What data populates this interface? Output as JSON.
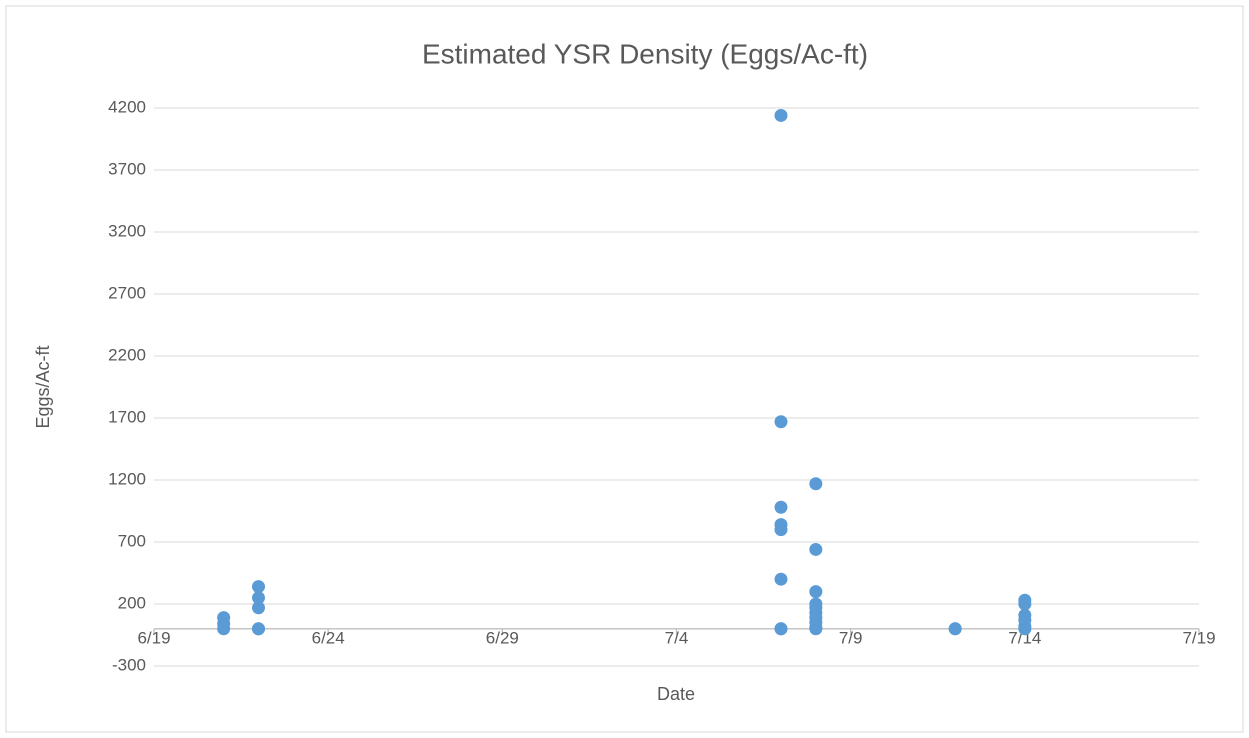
{
  "chart_data": {
    "type": "scatter",
    "title": "Estimated YSR Density (Eggs/Ac-ft)",
    "x_label": "Date",
    "y_label": "Eggs/Ac-ft",
    "color": "#5b9bd5",
    "x": [
      "6/21",
      "6/21",
      "6/21",
      "6/22",
      "6/22",
      "6/22",
      "6/22",
      "6/22",
      "7/7",
      "7/7",
      "7/7",
      "7/7",
      "7/7",
      "7/7",
      "7/7",
      "7/7",
      "7/8",
      "7/8",
      "7/8",
      "7/8",
      "7/8",
      "7/8",
      "7/8",
      "7/8",
      "7/8",
      "7/8",
      "7/12",
      "7/12",
      "7/14",
      "7/14",
      "7/14",
      "7/14",
      "7/14",
      "7/14"
    ],
    "values": [
      90,
      40,
      0,
      340,
      250,
      170,
      0,
      0,
      4140,
      1670,
      980,
      840,
      800,
      400,
      0,
      0,
      1170,
      640,
      300,
      200,
      170,
      130,
      90,
      50,
      10,
      0,
      0,
      0,
      230,
      200,
      110,
      70,
      20,
      0
    ],
    "xlim": [
      "6/19",
      "7/19"
    ],
    "xticks": [
      "6/19",
      "6/24",
      "6/29",
      "7/4",
      "7/9",
      "7/14",
      "7/19"
    ],
    "ylim": [
      -300,
      4200
    ],
    "yticks": [
      -300,
      200,
      700,
      1200,
      1700,
      2200,
      2700,
      3200,
      3700,
      4200
    ],
    "grid": true
  }
}
